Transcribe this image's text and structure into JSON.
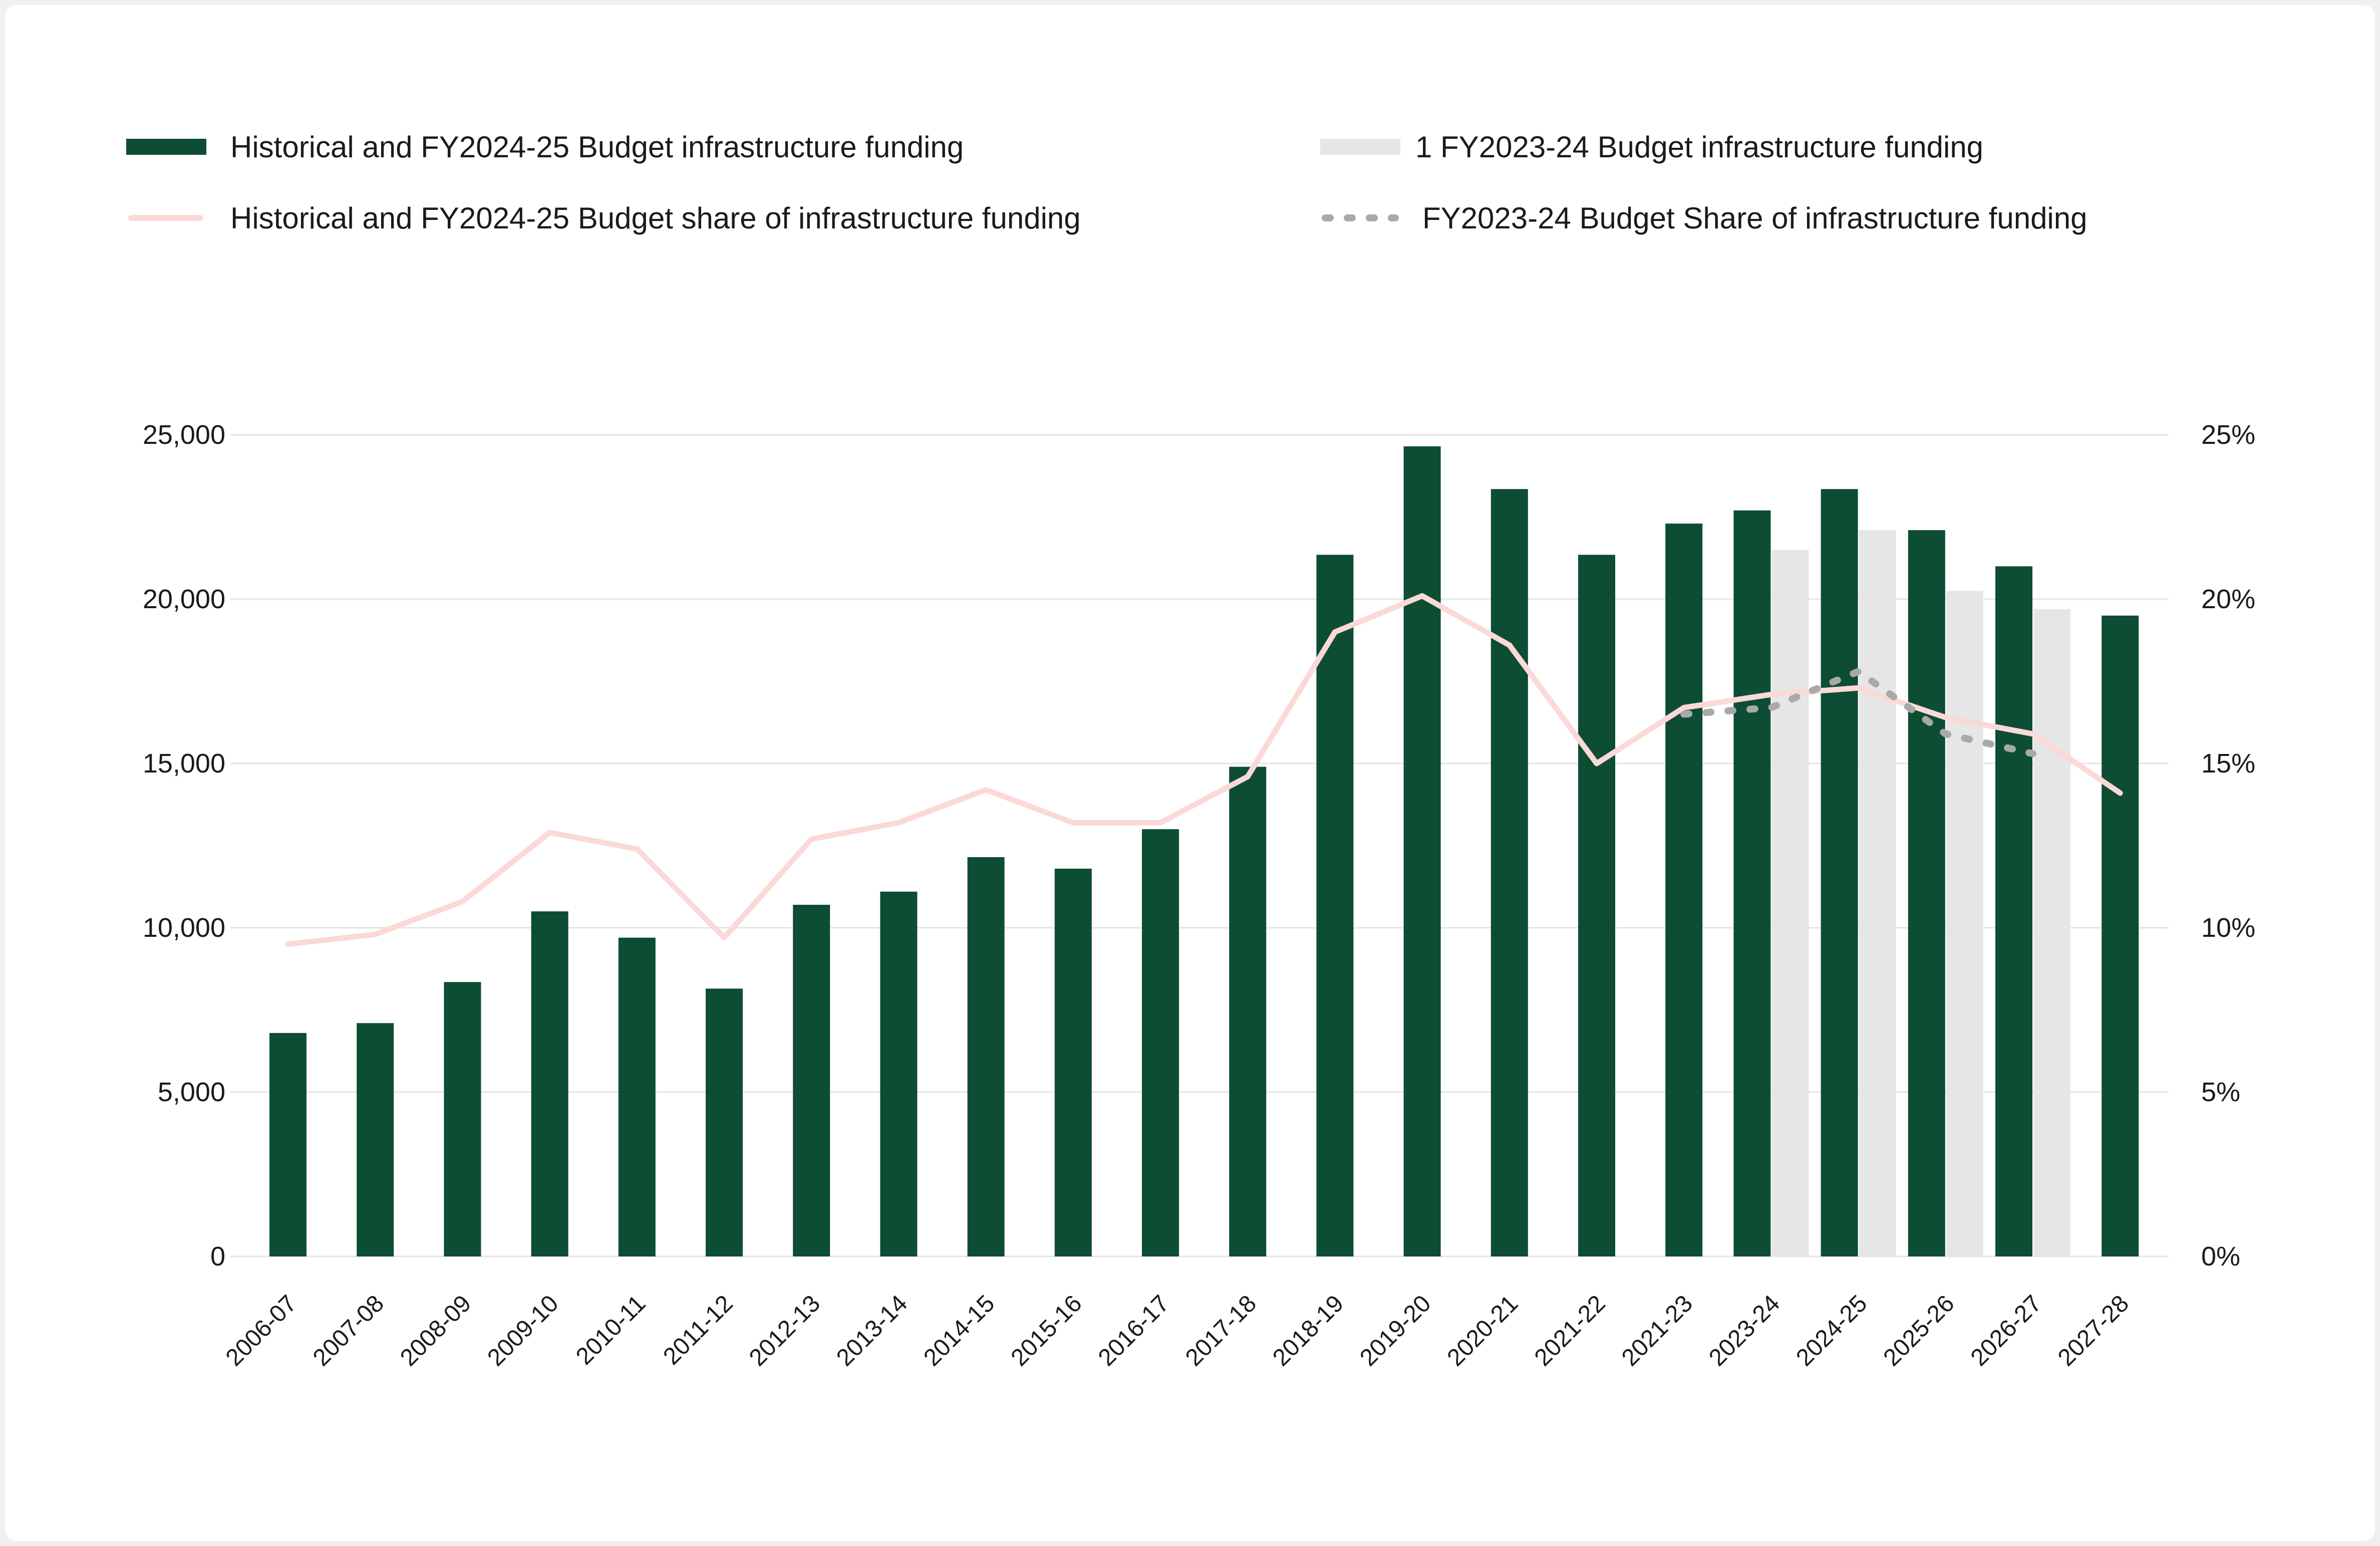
{
  "chart_data": {
    "type": "bar",
    "categories": [
      "2006-07",
      "2007-08",
      "2008-09",
      "2009-10",
      "2010-11",
      "2011-12",
      "2012-13",
      "2013-14",
      "2014-15",
      "2015-16",
      "2016-17",
      "2017-18",
      "2018-19",
      "2019-20",
      "2020-21",
      "2021-22",
      "2021-23",
      "2023-24",
      "2024-25",
      "2025-26",
      "2026-27",
      "2027-28"
    ],
    "series": [
      {
        "name": "Historical and FY2024-25 Budget infrastructure funding",
        "kind": "bar",
        "axis": "left",
        "color": "#0c4d33",
        "values": [
          6800,
          7100,
          8350,
          10500,
          9700,
          8150,
          10700,
          11100,
          12150,
          11800,
          13000,
          14900,
          21350,
          24650,
          23350,
          21350,
          22300,
          22700,
          23350,
          22100,
          21000,
          19500
        ]
      },
      {
        "name": "1 FY2023-24 Budget infrastructure funding",
        "kind": "bar",
        "axis": "left",
        "color": "#e6e6e6",
        "values": [
          null,
          null,
          null,
          null,
          null,
          null,
          null,
          null,
          null,
          null,
          null,
          null,
          null,
          null,
          null,
          null,
          null,
          21500,
          22100,
          20250,
          19700,
          null
        ]
      },
      {
        "name": "Historical and FY2024-25 Budget share of infrastructure funding",
        "kind": "line",
        "axis": "right",
        "color": "#fbd9d7",
        "values": [
          9.5,
          9.8,
          10.8,
          12.9,
          12.4,
          9.7,
          12.7,
          13.2,
          14.2,
          13.2,
          13.2,
          14.6,
          19.0,
          20.1,
          18.6,
          15.0,
          16.7,
          17.1,
          17.3,
          16.4,
          15.9,
          14.1
        ]
      },
      {
        "name": "FY2023-24 Budget Share of infrastructure funding",
        "kind": "line-dotted",
        "axis": "right",
        "color": "#a9a9a9",
        "values": [
          null,
          null,
          null,
          null,
          null,
          null,
          null,
          null,
          null,
          null,
          null,
          null,
          null,
          null,
          null,
          null,
          16.5,
          16.7,
          17.8,
          15.9,
          15.3,
          null
        ]
      }
    ],
    "y_left": {
      "ylim": [
        0,
        25000
      ],
      "ticks": [
        "0",
        "5,000",
        "10,000",
        "15,000",
        "20,000",
        "25,000"
      ]
    },
    "y_right": {
      "ylim": [
        0,
        25
      ],
      "ticks": [
        "0%",
        "5%",
        "10%",
        "15%",
        "20%",
        "25%"
      ]
    },
    "grid": true,
    "legend_placement": "top"
  }
}
